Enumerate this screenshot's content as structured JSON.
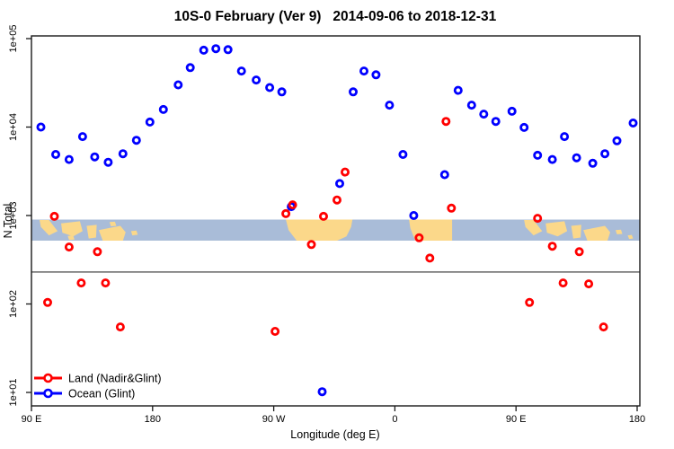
{
  "chart_data": {
    "type": "scatter",
    "title": "10S-0 February (Ver 9)   2014-09-06 to 2018-12-31",
    "xlabel": "Longitude (deg E)",
    "ylabel": "N Total",
    "x_axis": {
      "span_deg": 450,
      "ticks": [
        {
          "deg": 0,
          "label": "90 E"
        },
        {
          "deg": 90,
          "label": "180"
        },
        {
          "deg": 180,
          "label": "90 W"
        },
        {
          "deg": 270,
          "label": "0"
        },
        {
          "deg": 360,
          "label": "90 E"
        },
        {
          "deg": 450,
          "label": "180"
        }
      ]
    },
    "y_axis": {
      "scale": "log",
      "ticks": [
        {
          "value": 100000,
          "label": "1e+05"
        },
        {
          "value": 10000,
          "label": "1e+04"
        },
        {
          "value": 1000,
          "label": "1e+03"
        },
        {
          "value": 100,
          "label": "1e+02"
        },
        {
          "value": 10,
          "label": "1e+01"
        }
      ]
    },
    "ref_line": {
      "value": 230,
      "color": "#7d7d7d"
    },
    "map_band": {
      "value_top": 900,
      "value_bottom": 520,
      "ocean_color": "#a9bcd8",
      "land_color": "#fbd88a",
      "land": [
        {
          "name": "sumatra-west",
          "poly": [
            [
              6,
              0.02
            ],
            [
              13,
              0.02
            ],
            [
              19.4,
              0.55
            ],
            [
              13,
              0.75
            ],
            [
              7,
              0.35
            ]
          ]
        },
        {
          "name": "borneo-west",
          "poly": [
            [
              22,
              0.18
            ],
            [
              36,
              0.08
            ],
            [
              38,
              0.55
            ],
            [
              31,
              0.8
            ],
            [
              23,
              0.62
            ]
          ]
        },
        {
          "name": "sulawesi-west",
          "poly": [
            [
              41,
              0.3
            ],
            [
              48.5,
              0.25
            ],
            [
              48,
              0.85
            ],
            [
              42.5,
              0.9
            ]
          ]
        },
        {
          "name": "new-guinea-west",
          "poly": [
            [
              50,
              0.5
            ],
            [
              66,
              0.3
            ],
            [
              70,
              0.6
            ],
            [
              68,
              1.0
            ],
            [
              53,
              1.0
            ]
          ]
        },
        {
          "name": "island-speck-a",
          "poly": [
            [
              27,
              0.78
            ],
            [
              31,
              0.75
            ],
            [
              32,
              0.95
            ],
            [
              28,
              0.97
            ]
          ]
        },
        {
          "name": "island-speck-b",
          "poly": [
            [
              58,
              0.12
            ],
            [
              62,
              0.1
            ],
            [
              63,
              0.3
            ],
            [
              59,
              0.32
            ]
          ]
        },
        {
          "name": "island-speck-c",
          "poly": [
            [
              74,
              0.55
            ],
            [
              78,
              0.52
            ],
            [
              79,
              0.72
            ],
            [
              75,
              0.75
            ]
          ]
        },
        {
          "name": "south-america",
          "poly": [
            [
              189,
              0
            ],
            [
              238.5,
              0
            ],
            [
              237.5,
              0.35
            ],
            [
              234,
              0.8
            ],
            [
              227,
              1
            ],
            [
              197,
              1
            ],
            [
              191,
              0.5
            ]
          ]
        },
        {
          "name": "africa",
          "poly": [
            [
              280.5,
              0
            ],
            [
              312.5,
              0
            ],
            [
              312.5,
              1
            ],
            [
              285,
              1
            ],
            [
              281.5,
              0.4
            ]
          ]
        },
        {
          "name": "sumatra-east",
          "poly": [
            [
              366,
              0.02
            ],
            [
              373,
              0.02
            ],
            [
              379.4,
              0.55
            ],
            [
              373,
              0.75
            ],
            [
              367,
              0.35
            ]
          ]
        },
        {
          "name": "borneo-east",
          "poly": [
            [
              382,
              0.18
            ],
            [
              396,
              0.08
            ],
            [
              398,
              0.55
            ],
            [
              391,
              0.8
            ],
            [
              383,
              0.62
            ]
          ]
        },
        {
          "name": "sulawesi-east",
          "poly": [
            [
              401,
              0.3
            ],
            [
              408.5,
              0.25
            ],
            [
              408,
              0.85
            ],
            [
              402.5,
              0.9
            ]
          ]
        },
        {
          "name": "new-guinea-east",
          "poly": [
            [
              410,
              0.5
            ],
            [
              426,
              0.3
            ],
            [
              430,
              0.6
            ],
            [
              428,
              1.0
            ],
            [
              413,
              1.0
            ]
          ]
        },
        {
          "name": "island-speck-d",
          "poly": [
            [
              434,
              0.5
            ],
            [
              438,
              0.48
            ],
            [
              439,
              0.68
            ],
            [
              435,
              0.7
            ]
          ]
        },
        {
          "name": "island-speck-e",
          "poly": [
            [
              443,
              0.75
            ],
            [
              446,
              0.73
            ],
            [
              447,
              0.9
            ],
            [
              444,
              0.92
            ]
          ]
        }
      ]
    },
    "series": [
      {
        "name": "Land (Nadir&Glint)",
        "color": "#ff0000",
        "points": [
          [
            12,
            104
          ],
          [
            17,
            980
          ],
          [
            28,
            440
          ],
          [
            37,
            173
          ],
          [
            49,
            390
          ],
          [
            55,
            173
          ],
          [
            66,
            55
          ],
          [
            181,
            49
          ],
          [
            189,
            1050
          ],
          [
            194,
            1320
          ],
          [
            208,
            470
          ],
          [
            217,
            980
          ],
          [
            227,
            1500
          ],
          [
            233,
            3100
          ],
          [
            288,
            560
          ],
          [
            296,
            330
          ],
          [
            308,
            11600
          ],
          [
            312,
            1210
          ],
          [
            370,
            104
          ],
          [
            376,
            930
          ],
          [
            387,
            450
          ],
          [
            395,
            173
          ],
          [
            407,
            390
          ],
          [
            414,
            169
          ],
          [
            425,
            55
          ]
        ]
      },
      {
        "name": "Ocean (Glint)",
        "color": "#0000ff",
        "points": [
          [
            7,
            10000
          ],
          [
            18,
            4900
          ],
          [
            28,
            4300
          ],
          [
            38,
            7800
          ],
          [
            47,
            4600
          ],
          [
            57,
            4000
          ],
          [
            68,
            5000
          ],
          [
            78,
            7100
          ],
          [
            88,
            11400
          ],
          [
            98,
            15800
          ],
          [
            109,
            30000
          ],
          [
            118,
            47000
          ],
          [
            128,
            74000
          ],
          [
            137,
            77000
          ],
          [
            146,
            75000
          ],
          [
            156,
            43000
          ],
          [
            167,
            34000
          ],
          [
            177,
            28000
          ],
          [
            186,
            25000
          ],
          [
            193,
            1260
          ],
          [
            216,
            10.2
          ],
          [
            229,
            2300
          ],
          [
            239,
            25000
          ],
          [
            247,
            43000
          ],
          [
            256,
            39000
          ],
          [
            266,
            17700
          ],
          [
            276,
            4900
          ],
          [
            284,
            1000
          ],
          [
            307,
            2900
          ],
          [
            317,
            26000
          ],
          [
            327,
            17700
          ],
          [
            336,
            14000
          ],
          [
            345,
            11600
          ],
          [
            357,
            15100
          ],
          [
            366,
            9900
          ],
          [
            376,
            4800
          ],
          [
            387,
            4300
          ],
          [
            396,
            7800
          ],
          [
            405,
            4500
          ],
          [
            417,
            3900
          ],
          [
            426,
            5000
          ],
          [
            435,
            7000
          ],
          [
            447,
            11100
          ]
        ]
      }
    ]
  }
}
